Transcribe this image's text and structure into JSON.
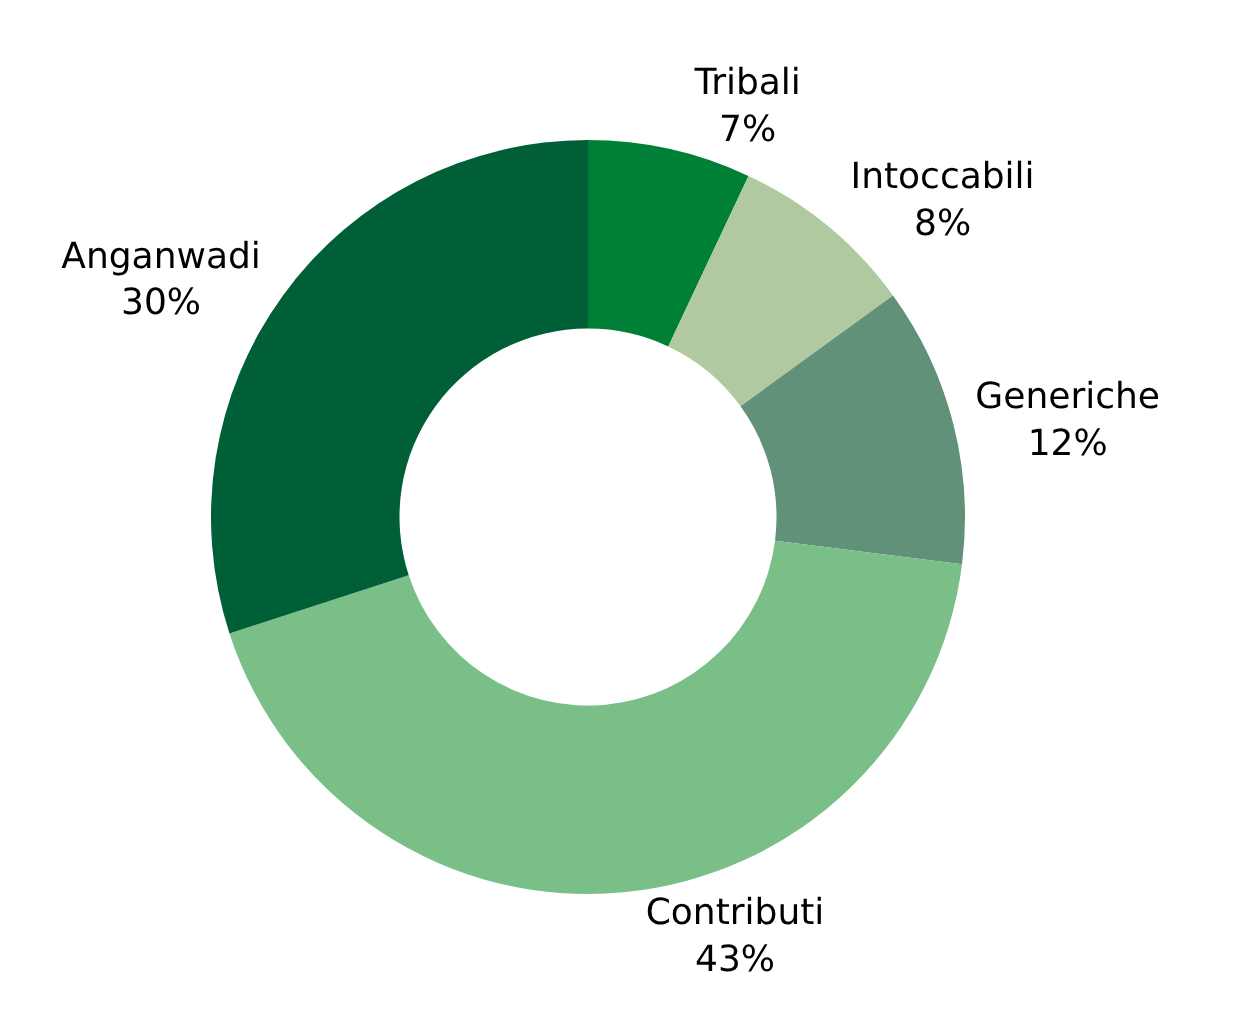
{
  "chart_data": {
    "type": "donut",
    "categories": [
      "Tribali",
      "Intoccabili",
      "Generiche",
      "Contributi",
      "Anganwadi"
    ],
    "values": [
      7,
      8,
      12,
      43,
      30
    ],
    "value_labels": [
      "7%",
      "8%",
      "12%",
      "43%",
      "30%"
    ],
    "colors": [
      "#008037",
      "#b0c9a0",
      "#62917a",
      "#7abf87",
      "#005f37"
    ],
    "legend": false
  }
}
